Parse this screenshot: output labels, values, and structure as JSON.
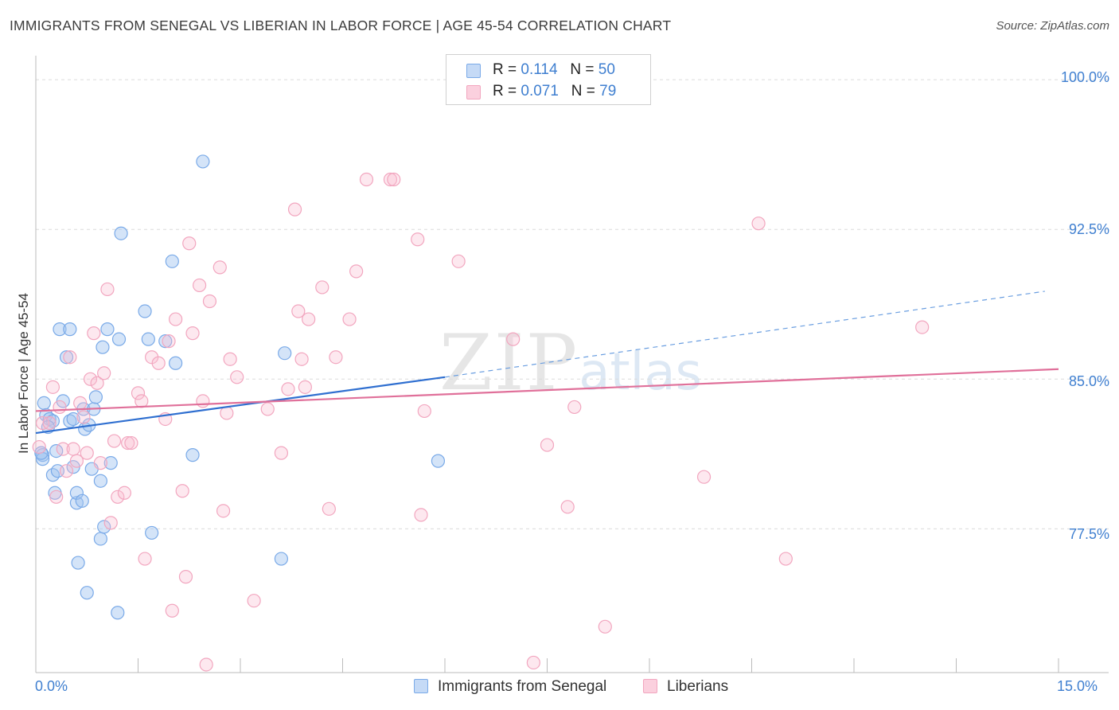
{
  "title": "IMMIGRANTS FROM SENEGAL VS LIBERIAN IN LABOR FORCE | AGE 45-54 CORRELATION CHART",
  "source": "Source: ZipAtlas.com",
  "watermark": {
    "zip": "ZIP",
    "atlas": "atlas"
  },
  "legend": {
    "r_label": "R =",
    "n_label": "N =",
    "series1": {
      "r": "0.114",
      "n": "50"
    },
    "series2": {
      "r": "0.071",
      "n": "79"
    }
  },
  "chart_data": {
    "type": "scatter",
    "title": "IMMIGRANTS FROM SENEGAL VS LIBERIAN IN LABOR FORCE | AGE 45-54 CORRELATION CHART",
    "xlabel": "",
    "ylabel": "In Labor Force | Age 45-54",
    "xlim": [
      0,
      15
    ],
    "ylim": [
      70.3,
      101.2
    ],
    "x_tick_labels": [
      "0.0%",
      "15.0%"
    ],
    "y_ticks": [
      77.5,
      85.0,
      92.5,
      100.0
    ],
    "y_tick_labels": [
      "77.5%",
      "85.0%",
      "92.5%",
      "100.0%"
    ],
    "series": [
      {
        "name": "Immigrants from Senegal",
        "color": "#7aaae8",
        "trend": {
          "x0": 0,
          "y0": 82.3,
          "x1": 6.0,
          "y1": 85.1,
          "dash_to_x": 14.8,
          "dash_to_y": 89.4
        },
        "points": [
          [
            0.1,
            81.2
          ],
          [
            0.1,
            81.0
          ],
          [
            0.12,
            83.8
          ],
          [
            0.15,
            83.2
          ],
          [
            0.2,
            83.0
          ],
          [
            0.25,
            82.9
          ],
          [
            0.25,
            80.2
          ],
          [
            0.28,
            79.3
          ],
          [
            0.3,
            81.4
          ],
          [
            0.32,
            80.4
          ],
          [
            0.35,
            87.5
          ],
          [
            0.4,
            83.9
          ],
          [
            0.45,
            86.1
          ],
          [
            0.5,
            87.5
          ],
          [
            0.5,
            82.9
          ],
          [
            0.55,
            83.0
          ],
          [
            0.55,
            80.6
          ],
          [
            0.6,
            78.8
          ],
          [
            0.6,
            79.3
          ],
          [
            0.62,
            75.8
          ],
          [
            0.68,
            78.9
          ],
          [
            0.7,
            83.5
          ],
          [
            0.72,
            82.5
          ],
          [
            0.75,
            74.3
          ],
          [
            0.78,
            82.7
          ],
          [
            0.82,
            80.5
          ],
          [
            0.85,
            83.5
          ],
          [
            0.88,
            84.1
          ],
          [
            0.95,
            79.9
          ],
          [
            0.95,
            77.0
          ],
          [
            0.98,
            86.6
          ],
          [
            1.0,
            77.6
          ],
          [
            1.05,
            87.5
          ],
          [
            1.1,
            80.8
          ],
          [
            1.2,
            73.3
          ],
          [
            1.22,
            87.0
          ],
          [
            1.25,
            92.3
          ],
          [
            1.6,
            88.4
          ],
          [
            1.65,
            87.0
          ],
          [
            1.7,
            77.3
          ],
          [
            1.9,
            86.9
          ],
          [
            2.0,
            90.9
          ],
          [
            2.05,
            85.8
          ],
          [
            2.3,
            81.2
          ],
          [
            2.45,
            95.9
          ],
          [
            3.6,
            76.0
          ],
          [
            3.65,
            86.3
          ],
          [
            5.9,
            80.9
          ],
          [
            0.08,
            81.3
          ],
          [
            0.18,
            82.6
          ]
        ]
      },
      {
        "name": "Liberians",
        "color": "#f2a6bf",
        "trend": {
          "x0": 0,
          "y0": 83.4,
          "x1": 15.0,
          "y1": 85.5
        },
        "points": [
          [
            0.05,
            81.6
          ],
          [
            0.1,
            82.8
          ],
          [
            0.2,
            82.8
          ],
          [
            0.25,
            84.6
          ],
          [
            0.3,
            79.1
          ],
          [
            0.35,
            83.6
          ],
          [
            0.4,
            81.5
          ],
          [
            0.45,
            80.4
          ],
          [
            0.5,
            86.1
          ],
          [
            0.55,
            81.5
          ],
          [
            0.6,
            80.9
          ],
          [
            0.65,
            83.8
          ],
          [
            0.7,
            83.1
          ],
          [
            0.75,
            81.3
          ],
          [
            0.8,
            85.0
          ],
          [
            0.85,
            87.3
          ],
          [
            0.9,
            84.8
          ],
          [
            0.95,
            80.8
          ],
          [
            1.0,
            85.3
          ],
          [
            1.05,
            89.5
          ],
          [
            1.1,
            77.8
          ],
          [
            1.15,
            81.9
          ],
          [
            1.2,
            79.1
          ],
          [
            1.3,
            79.3
          ],
          [
            1.35,
            81.8
          ],
          [
            1.4,
            81.8
          ],
          [
            1.5,
            84.3
          ],
          [
            1.55,
            83.9
          ],
          [
            1.6,
            76.0
          ],
          [
            1.7,
            86.1
          ],
          [
            1.8,
            85.8
          ],
          [
            1.9,
            83.0
          ],
          [
            1.95,
            86.9
          ],
          [
            2.0,
            73.4
          ],
          [
            2.05,
            88.0
          ],
          [
            2.15,
            79.4
          ],
          [
            2.2,
            75.1
          ],
          [
            2.25,
            91.8
          ],
          [
            2.3,
            87.3
          ],
          [
            2.4,
            89.7
          ],
          [
            2.45,
            83.9
          ],
          [
            2.5,
            70.7
          ],
          [
            2.55,
            88.9
          ],
          [
            2.7,
            90.6
          ],
          [
            2.75,
            78.4
          ],
          [
            2.8,
            83.3
          ],
          [
            2.85,
            86.0
          ],
          [
            2.95,
            85.1
          ],
          [
            3.2,
            73.9
          ],
          [
            3.4,
            83.5
          ],
          [
            3.6,
            81.3
          ],
          [
            3.7,
            84.5
          ],
          [
            3.8,
            93.5
          ],
          [
            3.85,
            88.4
          ],
          [
            3.9,
            86.0
          ],
          [
            3.95,
            84.6
          ],
          [
            4.0,
            88.0
          ],
          [
            4.2,
            89.6
          ],
          [
            4.3,
            78.5
          ],
          [
            4.4,
            86.1
          ],
          [
            4.6,
            88.0
          ],
          [
            4.7,
            90.4
          ],
          [
            4.85,
            95.0
          ],
          [
            5.2,
            95.0
          ],
          [
            5.25,
            95.0
          ],
          [
            5.6,
            92.0
          ],
          [
            5.65,
            78.2
          ],
          [
            5.7,
            83.4
          ],
          [
            6.2,
            90.9
          ],
          [
            7.0,
            87.0
          ],
          [
            7.3,
            70.8
          ],
          [
            7.5,
            81.7
          ],
          [
            7.8,
            78.6
          ],
          [
            7.9,
            83.6
          ],
          [
            8.35,
            72.6
          ],
          [
            9.8,
            80.1
          ],
          [
            10.6,
            92.8
          ],
          [
            11.0,
            76.0
          ],
          [
            13.0,
            87.6
          ]
        ]
      }
    ]
  },
  "bottom_legend": [
    "Immigrants from Senegal",
    "Liberians"
  ]
}
